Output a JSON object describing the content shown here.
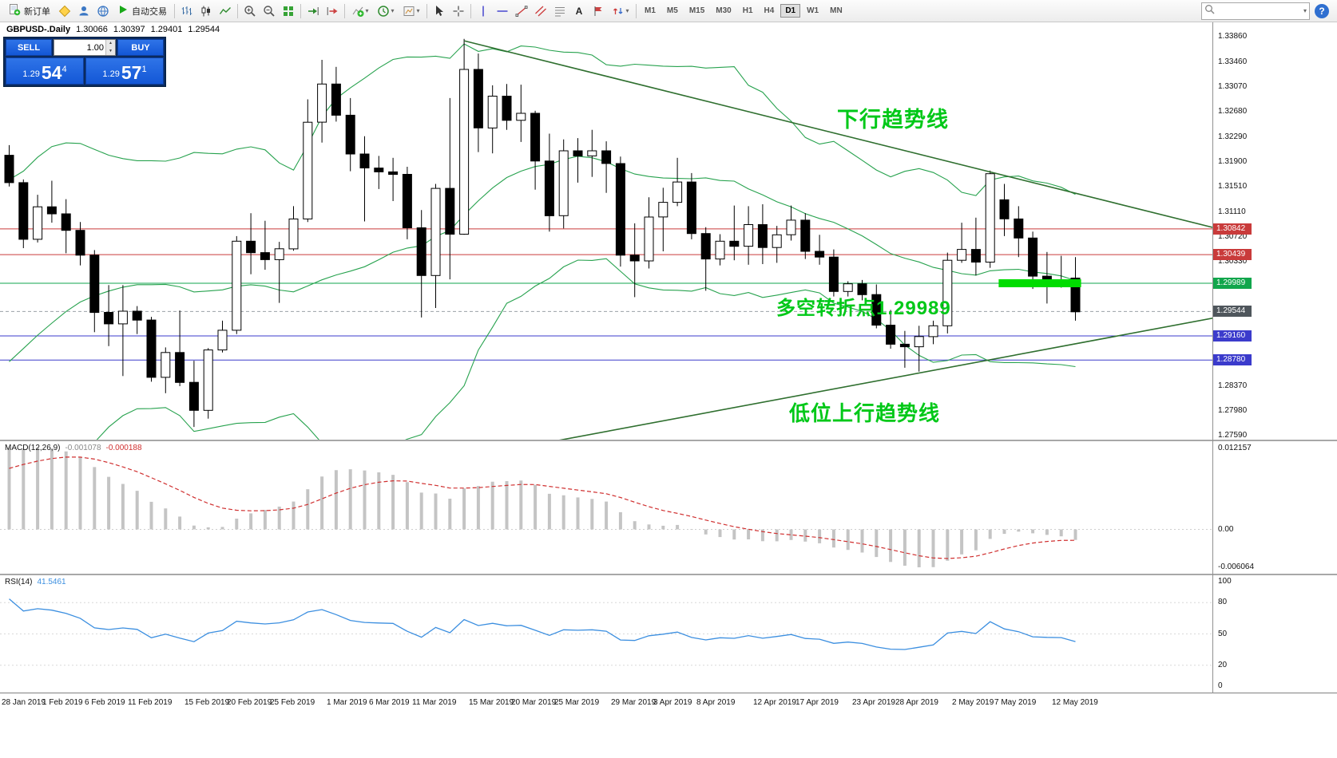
{
  "colors": {
    "toolbar_bg": "#f3f3f3",
    "accent_blue": "#1357d6",
    "panel_navy": "#0a2a5e",
    "band": "#27a24e",
    "trend": "#2f6f2f",
    "annotation": "#00c818",
    "resistance": "#c93b3b",
    "support": "#3b3bcc",
    "pivot": "#11a64c",
    "pivot_fill": "#00dc00",
    "current_tag": "#4f565c",
    "macd_hist": "#c4c4c4",
    "macd_signal": "#d03030",
    "rsi_line": "#3c8fe0",
    "candle_up": "#ffffff",
    "candle_down": "#000000"
  },
  "toolbar": {
    "new_order_label": "新订单",
    "autotrading_label": "自动交易",
    "timeframes": [
      "M1",
      "M5",
      "M15",
      "M30",
      "H1",
      "H4",
      "D1",
      "W1",
      "MN"
    ],
    "active_timeframe": "D1"
  },
  "trade_panel": {
    "sell_label": "SELL",
    "buy_label": "BUY",
    "volume": "1.00",
    "sell_price_prefix": "1.29",
    "sell_price_big": "54",
    "sell_price_sup": "4",
    "buy_price_prefix": "1.29",
    "buy_price_big": "57",
    "buy_price_sup": "1"
  },
  "chart_header": {
    "symbol_period": "GBPUSD-.Daily",
    "open": "1.30066",
    "high": "1.30397",
    "low": "1.29401",
    "close": "1.29544"
  },
  "annotations": {
    "downtrend": "下行趋势线",
    "pivot": "多空转折点1.29989",
    "uptrend": "低位上行趋势线"
  },
  "chart_data": {
    "type": "candlestick",
    "symbol": "GBPUSD-",
    "timeframe": "Daily",
    "y_range": [
      1.2753,
      1.3409
    ],
    "y_ticks": [
      "1.33860",
      "1.33460",
      "1.33070",
      "1.32680",
      "1.32290",
      "1.31900",
      "1.31510",
      "1.31110",
      "1.30720",
      "1.30330",
      "1.29940",
      "1.29550",
      "1.29160",
      "1.28770",
      "1.28370",
      "1.27980",
      "1.27590"
    ],
    "x_labels": [
      {
        "i": 0,
        "text": "28 Jan 2019"
      },
      {
        "i": 4,
        "text": "1 Feb 2019"
      },
      {
        "i": 7,
        "text": "6 Feb 2019"
      },
      {
        "i": 10,
        "text": "11 Feb 2019"
      },
      {
        "i": 14,
        "text": "15 Feb 2019"
      },
      {
        "i": 17,
        "text": "20 Feb 2019"
      },
      {
        "i": 20,
        "text": "25 Feb 2019"
      },
      {
        "i": 24,
        "text": "1 Mar 2019"
      },
      {
        "i": 27,
        "text": "6 Mar 2019"
      },
      {
        "i": 30,
        "text": "11 Mar 2019"
      },
      {
        "i": 34,
        "text": "15 Mar 2019"
      },
      {
        "i": 37,
        "text": "20 Mar 2019"
      },
      {
        "i": 40,
        "text": "25 Mar 2019"
      },
      {
        "i": 44,
        "text": "29 Mar 2019"
      },
      {
        "i": 47,
        "text": "3 Apr 2019"
      },
      {
        "i": 50,
        "text": "8 Apr 2019"
      },
      {
        "i": 54,
        "text": "12 Apr 2019"
      },
      {
        "i": 57,
        "text": "17 Apr 2019"
      },
      {
        "i": 61,
        "text": "23 Apr 2019"
      },
      {
        "i": 64,
        "text": "28 Apr 2019"
      },
      {
        "i": 68,
        "text": "2 May 2019"
      },
      {
        "i": 71,
        "text": "7 May 2019"
      },
      {
        "i": 75,
        "text": "12 May 2019"
      }
    ],
    "candles": [
      [
        1.32,
        1.3216,
        1.3151,
        1.3157
      ],
      [
        1.3157,
        1.3162,
        1.3054,
        1.3068
      ],
      [
        1.3068,
        1.3138,
        1.3063,
        1.3119
      ],
      [
        1.3119,
        1.316,
        1.3094,
        1.3108
      ],
      [
        1.3108,
        1.3131,
        1.3046,
        1.3082
      ],
      [
        1.3082,
        1.3095,
        1.3027,
        1.3043
      ],
      [
        1.3043,
        1.3051,
        1.2922,
        1.2953
      ],
      [
        1.2953,
        1.2996,
        1.29,
        1.2935
      ],
      [
        1.2935,
        1.2996,
        1.2853,
        1.2955
      ],
      [
        1.2955,
        1.2963,
        1.2919,
        1.2941
      ],
      [
        1.2941,
        1.2946,
        1.2844,
        1.2851
      ],
      [
        1.2851,
        1.2898,
        1.2826,
        1.289
      ],
      [
        1.289,
        1.2956,
        1.2837,
        1.2843
      ],
      [
        1.2843,
        1.2877,
        1.2773,
        1.2799
      ],
      [
        1.2799,
        1.2897,
        1.2786,
        1.2894
      ],
      [
        1.2894,
        1.294,
        1.289,
        1.2925
      ],
      [
        1.2925,
        1.3073,
        1.2919,
        1.3065
      ],
      [
        1.3065,
        1.3109,
        1.3013,
        1.3047
      ],
      [
        1.3047,
        1.3097,
        1.302,
        1.3036
      ],
      [
        1.3036,
        1.3064,
        1.2968,
        1.3053
      ],
      [
        1.3053,
        1.312,
        1.305,
        1.31
      ],
      [
        1.31,
        1.3288,
        1.3095,
        1.3252
      ],
      [
        1.3252,
        1.335,
        1.322,
        1.3312
      ],
      [
        1.3312,
        1.3339,
        1.3253,
        1.3263
      ],
      [
        1.3263,
        1.329,
        1.3175,
        1.3202
      ],
      [
        1.3202,
        1.323,
        1.3096,
        1.318
      ],
      [
        1.318,
        1.3199,
        1.3147,
        1.3174
      ],
      [
        1.3174,
        1.3196,
        1.3128,
        1.317
      ],
      [
        1.317,
        1.3182,
        1.3068,
        1.3086
      ],
      [
        1.3086,
        1.3114,
        1.2945,
        1.3011
      ],
      [
        1.3011,
        1.3155,
        1.296,
        1.3148
      ],
      [
        1.3148,
        1.329,
        1.3005,
        1.3076
      ],
      [
        1.3076,
        1.3383,
        1.3075,
        1.3335
      ],
      [
        1.3335,
        1.336,
        1.3205,
        1.3243
      ],
      [
        1.3243,
        1.331,
        1.3203,
        1.3293
      ],
      [
        1.3293,
        1.3312,
        1.324,
        1.3255
      ],
      [
        1.3255,
        1.3311,
        1.3221,
        1.3266
      ],
      [
        1.3266,
        1.327,
        1.3146,
        1.3191
      ],
      [
        1.3191,
        1.3234,
        1.308,
        1.3105
      ],
      [
        1.3105,
        1.3225,
        1.3085,
        1.3207
      ],
      [
        1.3207,
        1.3227,
        1.3157,
        1.3199
      ],
      [
        1.3199,
        1.324,
        1.3166,
        1.3207
      ],
      [
        1.3207,
        1.3222,
        1.3141,
        1.3187
      ],
      [
        1.3187,
        1.3198,
        1.3025,
        1.3043
      ],
      [
        1.3043,
        1.3093,
        1.2977,
        1.3034
      ],
      [
        1.3034,
        1.3134,
        1.3022,
        1.3103
      ],
      [
        1.3103,
        1.3149,
        1.3049,
        1.3126
      ],
      [
        1.3126,
        1.3196,
        1.312,
        1.3158
      ],
      [
        1.3158,
        1.3172,
        1.3068,
        1.3077
      ],
      [
        1.3077,
        1.3087,
        1.2987,
        1.3037
      ],
      [
        1.3037,
        1.3076,
        1.3027,
        1.3065
      ],
      [
        1.3065,
        1.3121,
        1.3035,
        1.3057
      ],
      [
        1.3057,
        1.312,
        1.3028,
        1.3091
      ],
      [
        1.3091,
        1.3123,
        1.3029,
        1.3055
      ],
      [
        1.3055,
        1.3089,
        1.3031,
        1.3075
      ],
      [
        1.3075,
        1.3121,
        1.3066,
        1.3098
      ],
      [
        1.3098,
        1.3109,
        1.3037,
        1.3049
      ],
      [
        1.3049,
        1.3075,
        1.3028,
        1.304
      ],
      [
        1.304,
        1.3052,
        1.2978,
        1.2986
      ],
      [
        1.2986,
        1.3002,
        1.2978,
        1.2998
      ],
      [
        1.2998,
        1.3004,
        1.2972,
        1.2981
      ],
      [
        1.2981,
        1.2997,
        1.2928,
        1.2933
      ],
      [
        1.2933,
        1.2957,
        1.2896,
        1.2903
      ],
      [
        1.2903,
        1.2924,
        1.2866,
        1.2899
      ],
      [
        1.2899,
        1.2932,
        1.286,
        1.2915
      ],
      [
        1.2915,
        1.294,
        1.2903,
        1.2932
      ],
      [
        1.2932,
        1.3047,
        1.292,
        1.3035
      ],
      [
        1.3035,
        1.3094,
        1.3031,
        1.3052
      ],
      [
        1.3052,
        1.3102,
        1.3011,
        1.3032
      ],
      [
        1.3032,
        1.3176,
        1.3023,
        1.3171
      ],
      [
        1.313,
        1.3155,
        1.3073,
        1.31
      ],
      [
        1.31,
        1.312,
        1.304,
        1.307
      ],
      [
        1.307,
        1.308,
        1.299,
        1.301
      ],
      [
        1.301,
        1.3048,
        1.2967,
        1.3003
      ],
      [
        1.3003,
        1.3042,
        1.2992,
        1.3
      ],
      [
        1.3007,
        1.304,
        1.294,
        1.2954
      ]
    ],
    "warmup_closes": [
      1.262,
      1.2655,
      1.27,
      1.273,
      1.2715,
      1.2745,
      1.276,
      1.2785,
      1.283,
      1.2865,
      1.285,
      1.288,
      1.292,
      1.296,
      1.2865,
      1.289,
      1.295,
      1.3,
      1.308,
      1.3175
    ],
    "hlines": [
      {
        "price": 1.30842,
        "label": "1.30842",
        "color": "#c93b3b",
        "type": "resistance"
      },
      {
        "price": 1.30439,
        "label": "1.30439",
        "color": "#c93b3b",
        "type": "resistance"
      },
      {
        "price": 1.29989,
        "label": "1.29989",
        "color": "#11a64c",
        "type": "pivot"
      },
      {
        "price": 1.29544,
        "label": "1.29544",
        "color": "#9aa0a6",
        "type": "current",
        "dash": "4 3",
        "tag_bg": "#4f565c"
      },
      {
        "price": 1.2916,
        "label": "1.29160",
        "color": "#3b3bcc",
        "type": "support"
      },
      {
        "price": 1.2878,
        "label": "1.28780",
        "color": "#3b3bcc",
        "type": "support"
      }
    ],
    "trendlines": [
      {
        "name": "downtrend",
        "i1": 32,
        "p1": 1.338,
        "i2": 88,
        "p2": 1.3068
      },
      {
        "name": "uptrend",
        "i1": 37,
        "p1": 1.2745,
        "i2": 88,
        "p2": 1.2958
      }
    ],
    "highlight_segment": {
      "i1": 69.6,
      "i2": 75.4,
      "price": 1.29989,
      "height": 10
    },
    "indicators": {
      "bollinger": {
        "period": 20,
        "deviation": 2
      },
      "macd": {
        "name": "MACD(12,26,9)",
        "fast": 12,
        "slow": 26,
        "signal": 9,
        "current": "-0.001078",
        "signal_current": "-0.000188",
        "axis": [
          "0.012157",
          "0.00",
          "-0.006064"
        ]
      },
      "rsi": {
        "name": "RSI(14)",
        "period": 14,
        "current": "41.5461",
        "scale_labels": [
          "100",
          "80",
          "50",
          "20",
          "0"
        ]
      }
    }
  }
}
